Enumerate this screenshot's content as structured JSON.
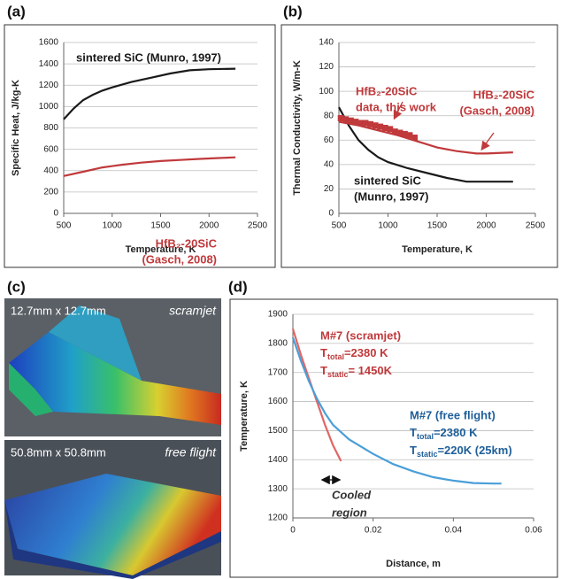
{
  "chart_data": [
    {
      "type": "line",
      "panel_label": "(a)",
      "y_label": "Specific Heat, J/kg-K",
      "x_label": "Temperature, K",
      "xlim": [
        500,
        2500
      ],
      "xticks": [
        500,
        1000,
        1500,
        2000,
        2500
      ],
      "ylim": [
        0,
        1600
      ],
      "yticks": [
        0,
        200,
        400,
        600,
        800,
        1000,
        1200,
        1400,
        1600
      ],
      "grid": true,
      "series": [
        {
          "color": "#1a1a1a",
          "x": [
            500,
            600,
            700,
            800,
            900,
            1000,
            1200,
            1400,
            1600,
            1800,
            2000,
            2273
          ],
          "values": [
            880,
            980,
            1060,
            1110,
            1150,
            1180,
            1230,
            1270,
            1310,
            1340,
            1350,
            1355
          ]
        },
        {
          "color": "#c0393b",
          "x": [
            500,
            700,
            900,
            1100,
            1300,
            1500,
            1700,
            1900,
            2100,
            2273
          ],
          "values": [
            350,
            390,
            430,
            455,
            475,
            490,
            500,
            510,
            518,
            525
          ]
        }
      ],
      "annotations": [
        {
          "color": "#1a1a1a",
          "lines": [
            "sintered SiC (Munro, 1997)"
          ]
        },
        {
          "color": "#c0393b",
          "lines": [
            "HfB₂-20SiC",
            "(Gasch, 2008)"
          ]
        }
      ]
    },
    {
      "type": "line",
      "panel_label": "(b)",
      "y_label": "Thermal Conductivity,  W/m-K",
      "x_label": "Temperature, K",
      "xlim": [
        500,
        2500
      ],
      "xticks": [
        500,
        1000,
        1500,
        2000,
        2500
      ],
      "ylim": [
        0,
        140
      ],
      "yticks": [
        0,
        20,
        40,
        60,
        80,
        100,
        120,
        140
      ],
      "grid": true,
      "series": [
        {
          "color": "#1a1a1a",
          "x": [
            500,
            600,
            700,
            800,
            900,
            1000,
            1200,
            1400,
            1600,
            1800,
            2000,
            2273
          ],
          "values": [
            87,
            72,
            60,
            52,
            46,
            42,
            37,
            33,
            29,
            26,
            26,
            26
          ]
        },
        {
          "color": "#c0393b",
          "x": [
            500,
            700,
            900,
            1100,
            1300,
            1500,
            1700,
            1900,
            2000,
            2273
          ],
          "values": [
            75,
            72,
            68,
            64,
            59,
            54,
            51,
            49,
            49,
            50
          ]
        },
        {
          "color": "#c0393b",
          "marker": "square",
          "x": [
            520,
            570,
            620,
            670,
            720,
            770,
            820,
            870,
            920,
            970,
            1020,
            1070,
            1120,
            1170,
            1220,
            1270
          ],
          "values": [
            78,
            77,
            76,
            75,
            74,
            74,
            73,
            72,
            71,
            70,
            69,
            67,
            66,
            65,
            64,
            62
          ]
        }
      ],
      "annotations": [
        {
          "color": "#c0393b",
          "lines": [
            "HfB₂-20SiC",
            "data, this work"
          ]
        },
        {
          "color": "#c0393b",
          "lines": [
            "HfB₂-20SiC",
            "(Gasch, 2008)"
          ]
        },
        {
          "color": "#1a1a1a",
          "lines": [
            "sintered SiC",
            "(Munro, 1997)"
          ]
        }
      ]
    },
    {
      "type": "line",
      "panel_label": "(d)",
      "y_label": "Temperature, K",
      "x_label": "Distance, m",
      "xlim": [
        0,
        0.06
      ],
      "xticks": [
        0,
        0.02,
        0.04,
        0.06
      ],
      "ylim": [
        1200,
        1900
      ],
      "yticks": [
        1200,
        1300,
        1400,
        1500,
        1600,
        1700,
        1800,
        1900
      ],
      "grid": true,
      "series": [
        {
          "color": "#e06666",
          "x": [
            0,
            0.002,
            0.004,
            0.006,
            0.008,
            0.01,
            0.012
          ],
          "values": [
            1850,
            1760,
            1680,
            1600,
            1520,
            1450,
            1395
          ]
        },
        {
          "color": "#4a9fd8",
          "x": [
            0,
            0.002,
            0.004,
            0.006,
            0.008,
            0.01,
            0.014,
            0.02,
            0.025,
            0.03,
            0.035,
            0.04,
            0.045,
            0.05,
            0.052
          ],
          "values": [
            1820,
            1740,
            1670,
            1610,
            1560,
            1520,
            1470,
            1420,
            1385,
            1360,
            1340,
            1328,
            1320,
            1318,
            1318
          ]
        }
      ],
      "annotations": [
        {
          "color": "#c0393b",
          "lines": [
            "M#7 (scramjet)",
            {
              "base": "T",
              "sub": "total",
              "text": "=2380 K"
            },
            {
              "base": "T",
              "sub": "static",
              "text": "= 1450K"
            }
          ]
        },
        {
          "color": "#1f5f99",
          "lines": [
            "M#7 (free flight)",
            {
              "base": "T",
              "sub": "total",
              "text": "=2380 K"
            },
            {
              "base": "T",
              "sub": "static",
              "text": "=220K (25km)"
            }
          ]
        },
        {
          "color": "#333333",
          "lines": [
            "Cooled",
            "region"
          ]
        }
      ]
    }
  ],
  "image_panel": {
    "panel_label": "(c)",
    "top_size": "12.7mm x 12.7mm",
    "top_name": "scramjet",
    "bottom_size": "50.8mm x 50.8mm",
    "bottom_name": "free flight"
  }
}
